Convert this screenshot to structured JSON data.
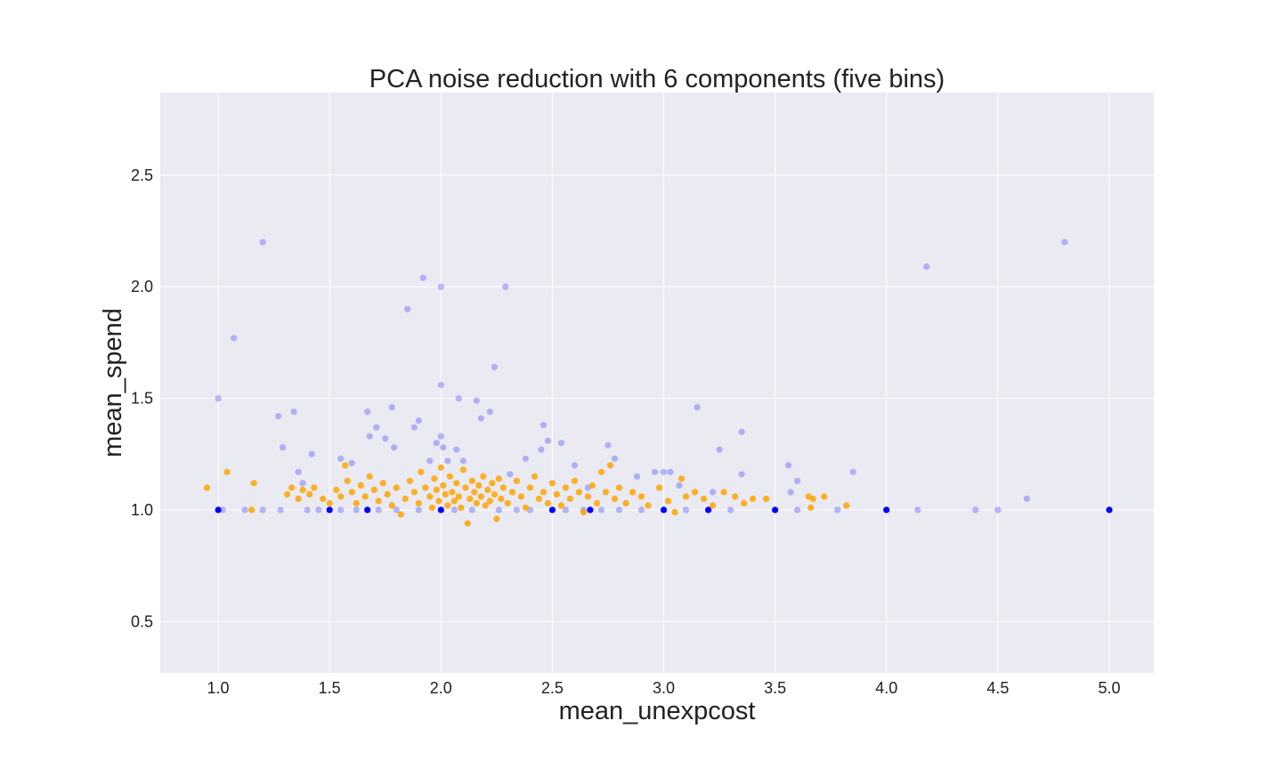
{
  "chart_data": {
    "type": "scatter",
    "title": "PCA noise reduction with 6 components (five bins)",
    "xlabel": "mean_unexpcost",
    "ylabel": "mean_spend",
    "xlim": [
      0.74,
      5.2
    ],
    "ylim": [
      0.27,
      2.87
    ],
    "xticks": [
      "1.0",
      "1.5",
      "2.0",
      "2.5",
      "3.0",
      "3.5",
      "4.0",
      "4.5",
      "5.0"
    ],
    "yticks": [
      "0.5",
      "1.0",
      "1.5",
      "2.0",
      "2.5"
    ],
    "grid": true,
    "legend": "none",
    "colors": {
      "background": "#eaeaf2",
      "grid": "#ffffff",
      "series_a": "#0000ff",
      "series_b": "#ffa500"
    },
    "series": [
      {
        "color": "#0000ff",
        "opacity": 0.25,
        "points": [
          [
            1.0,
            1.5
          ],
          [
            1.07,
            1.77
          ],
          [
            1.2,
            2.2
          ],
          [
            1.27,
            1.42
          ],
          [
            1.29,
            1.28
          ],
          [
            1.34,
            1.44
          ],
          [
            1.36,
            1.17
          ],
          [
            1.38,
            1.12
          ],
          [
            1.42,
            1.25
          ],
          [
            1.55,
            1.23
          ],
          [
            1.6,
            1.21
          ],
          [
            1.67,
            1.44
          ],
          [
            1.68,
            1.33
          ],
          [
            1.71,
            1.37
          ],
          [
            1.75,
            1.32
          ],
          [
            1.78,
            1.46
          ],
          [
            1.79,
            1.28
          ],
          [
            1.85,
            1.9
          ],
          [
            1.88,
            1.37
          ],
          [
            1.9,
            1.4
          ],
          [
            1.92,
            2.04
          ],
          [
            1.95,
            1.22
          ],
          [
            1.98,
            1.3
          ],
          [
            2.0,
            2.0
          ],
          [
            2.0,
            1.56
          ],
          [
            2.0,
            1.33
          ],
          [
            2.01,
            1.28
          ],
          [
            2.03,
            1.22
          ],
          [
            2.08,
            1.5
          ],
          [
            2.07,
            1.27
          ],
          [
            2.1,
            1.22
          ],
          [
            2.16,
            1.49
          ],
          [
            2.18,
            1.41
          ],
          [
            2.22,
            1.44
          ],
          [
            2.24,
            1.64
          ],
          [
            2.29,
            2.0
          ],
          [
            2.31,
            1.16
          ],
          [
            2.38,
            1.23
          ],
          [
            2.45,
            1.27
          ],
          [
            2.46,
            1.38
          ],
          [
            2.48,
            1.31
          ],
          [
            2.54,
            1.3
          ],
          [
            2.6,
            1.2
          ],
          [
            2.66,
            1.1
          ],
          [
            2.75,
            1.29
          ],
          [
            2.78,
            1.23
          ],
          [
            2.88,
            1.15
          ],
          [
            2.96,
            1.17
          ],
          [
            3.0,
            1.17
          ],
          [
            3.03,
            1.17
          ],
          [
            3.07,
            1.11
          ],
          [
            3.15,
            1.46
          ],
          [
            3.22,
            1.08
          ],
          [
            3.25,
            1.27
          ],
          [
            3.35,
            1.35
          ],
          [
            3.35,
            1.16
          ],
          [
            3.56,
            1.2
          ],
          [
            3.57,
            1.08
          ],
          [
            3.6,
            1.13
          ],
          [
            3.85,
            1.17
          ],
          [
            4.18,
            2.09
          ],
          [
            4.63,
            1.05
          ],
          [
            4.8,
            2.2
          ],
          [
            1.02,
            1.0
          ],
          [
            1.12,
            1.0
          ],
          [
            1.2,
            1.0
          ],
          [
            1.28,
            1.0
          ],
          [
            1.4,
            1.0
          ],
          [
            1.45,
            1.0
          ],
          [
            1.55,
            1.0
          ],
          [
            1.62,
            1.0
          ],
          [
            1.72,
            1.0
          ],
          [
            1.8,
            1.0
          ],
          [
            1.9,
            1.0
          ],
          [
            2.06,
            1.0
          ],
          [
            2.14,
            1.0
          ],
          [
            2.26,
            1.0
          ],
          [
            2.34,
            1.0
          ],
          [
            2.4,
            1.0
          ],
          [
            2.56,
            1.0
          ],
          [
            2.64,
            1.0
          ],
          [
            2.72,
            1.0
          ],
          [
            2.8,
            1.0
          ],
          [
            2.9,
            1.0
          ],
          [
            3.1,
            1.0
          ],
          [
            3.2,
            1.0
          ],
          [
            3.3,
            1.0
          ],
          [
            3.6,
            1.0
          ],
          [
            3.78,
            1.0
          ],
          [
            4.14,
            1.0
          ],
          [
            4.4,
            1.0
          ],
          [
            4.5,
            1.0
          ]
        ]
      },
      {
        "color": "#0000ff",
        "opacity": 1.0,
        "points": [
          [
            1.0,
            1.0
          ],
          [
            1.5,
            1.0
          ],
          [
            1.67,
            1.0
          ],
          [
            2.0,
            1.0
          ],
          [
            2.5,
            1.0
          ],
          [
            2.67,
            1.0
          ],
          [
            3.0,
            1.0
          ],
          [
            3.2,
            1.0
          ],
          [
            3.5,
            1.0
          ],
          [
            4.0,
            1.0
          ],
          [
            5.0,
            1.0
          ]
        ]
      },
      {
        "color": "#ffa500",
        "opacity": 0.85,
        "points": [
          [
            0.95,
            1.1
          ],
          [
            1.04,
            1.17
          ],
          [
            1.15,
            1.0
          ],
          [
            1.16,
            1.12
          ],
          [
            1.31,
            1.07
          ],
          [
            1.33,
            1.1
          ],
          [
            1.36,
            1.05
          ],
          [
            1.38,
            1.09
          ],
          [
            1.41,
            1.07
          ],
          [
            1.43,
            1.1
          ],
          [
            1.47,
            1.05
          ],
          [
            1.5,
            1.03
          ],
          [
            1.53,
            1.09
          ],
          [
            1.55,
            1.06
          ],
          [
            1.57,
            1.2
          ],
          [
            1.58,
            1.13
          ],
          [
            1.6,
            1.08
          ],
          [
            1.62,
            1.03
          ],
          [
            1.64,
            1.11
          ],
          [
            1.66,
            1.06
          ],
          [
            1.68,
            1.15
          ],
          [
            1.7,
            1.09
          ],
          [
            1.72,
            1.04
          ],
          [
            1.74,
            1.12
          ],
          [
            1.76,
            1.07
          ],
          [
            1.78,
            1.02
          ],
          [
            1.8,
            1.1
          ],
          [
            1.82,
            0.98
          ],
          [
            1.84,
            1.05
          ],
          [
            1.86,
            1.13
          ],
          [
            1.88,
            1.08
          ],
          [
            1.9,
            1.03
          ],
          [
            1.91,
            1.17
          ],
          [
            1.93,
            1.1
          ],
          [
            1.95,
            1.06
          ],
          [
            1.96,
            1.01
          ],
          [
            1.97,
            1.14
          ],
          [
            1.98,
            1.09
          ],
          [
            1.99,
            1.04
          ],
          [
            2.0,
            1.19
          ],
          [
            2.01,
            1.11
          ],
          [
            2.02,
            1.07
          ],
          [
            2.03,
            1.02
          ],
          [
            2.04,
            1.15
          ],
          [
            2.05,
            1.08
          ],
          [
            2.06,
            1.04
          ],
          [
            2.07,
            1.12
          ],
          [
            2.08,
            1.06
          ],
          [
            2.09,
            1.01
          ],
          [
            2.1,
            1.18
          ],
          [
            2.11,
            1.1
          ],
          [
            2.12,
            0.94
          ],
          [
            2.13,
            1.05
          ],
          [
            2.14,
            1.13
          ],
          [
            2.15,
            1.08
          ],
          [
            2.16,
            1.03
          ],
          [
            2.17,
            1.11
          ],
          [
            2.18,
            1.06
          ],
          [
            2.19,
            1.15
          ],
          [
            2.2,
            1.02
          ],
          [
            2.21,
            1.09
          ],
          [
            2.22,
            1.04
          ],
          [
            2.23,
            1.12
          ],
          [
            2.24,
            1.07
          ],
          [
            2.25,
            0.96
          ],
          [
            2.26,
            1.14
          ],
          [
            2.27,
            1.05
          ],
          [
            2.28,
            1.1
          ],
          [
            2.3,
            1.03
          ],
          [
            2.32,
            1.08
          ],
          [
            2.34,
            1.13
          ],
          [
            2.36,
            1.06
          ],
          [
            2.38,
            1.01
          ],
          [
            2.4,
            1.1
          ],
          [
            2.42,
            1.15
          ],
          [
            2.44,
            1.05
          ],
          [
            2.46,
            1.08
          ],
          [
            2.48,
            1.03
          ],
          [
            2.5,
            1.12
          ],
          [
            2.52,
            1.07
          ],
          [
            2.54,
            1.02
          ],
          [
            2.56,
            1.1
          ],
          [
            2.58,
            1.05
          ],
          [
            2.6,
            1.13
          ],
          [
            2.62,
            1.08
          ],
          [
            2.64,
            0.99
          ],
          [
            2.66,
            1.06
          ],
          [
            2.68,
            1.11
          ],
          [
            2.7,
            1.03
          ],
          [
            2.72,
            1.17
          ],
          [
            2.74,
            1.08
          ],
          [
            2.76,
            1.2
          ],
          [
            2.78,
            1.05
          ],
          [
            2.8,
            1.1
          ],
          [
            2.83,
            1.03
          ],
          [
            2.86,
            1.08
          ],
          [
            2.9,
            1.06
          ],
          [
            2.93,
            1.02
          ],
          [
            2.98,
            1.1
          ],
          [
            3.02,
            1.04
          ],
          [
            3.05,
            0.99
          ],
          [
            3.08,
            1.14
          ],
          [
            3.1,
            1.06
          ],
          [
            3.14,
            1.08
          ],
          [
            3.18,
            1.05
          ],
          [
            3.22,
            1.02
          ],
          [
            3.27,
            1.08
          ],
          [
            3.32,
            1.06
          ],
          [
            3.36,
            1.03
          ],
          [
            3.4,
            1.05
          ],
          [
            3.46,
            1.05
          ],
          [
            3.65,
            1.06
          ],
          [
            3.67,
            1.05
          ],
          [
            3.72,
            1.06
          ],
          [
            3.82,
            1.02
          ],
          [
            3.66,
            1.01
          ]
        ]
      }
    ]
  }
}
